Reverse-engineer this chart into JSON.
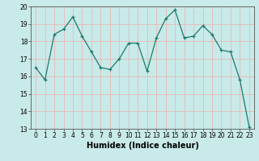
{
  "x": [
    0,
    1,
    2,
    3,
    4,
    5,
    6,
    7,
    8,
    9,
    10,
    11,
    12,
    13,
    14,
    15,
    16,
    17,
    18,
    19,
    20,
    21,
    22,
    23
  ],
  "y": [
    16.5,
    15.8,
    18.4,
    18.7,
    19.4,
    18.3,
    17.4,
    16.5,
    16.4,
    17.0,
    17.9,
    17.9,
    16.3,
    18.2,
    19.3,
    19.8,
    18.2,
    18.3,
    18.9,
    18.4,
    17.5,
    17.4,
    15.8,
    13.1
  ],
  "xlabel": "Humidex (Indice chaleur)",
  "ylim": [
    13,
    20
  ],
  "xlim": [
    -0.5,
    23.5
  ],
  "yticks": [
    13,
    14,
    15,
    16,
    17,
    18,
    19,
    20
  ],
  "xticks": [
    0,
    1,
    2,
    3,
    4,
    5,
    6,
    7,
    8,
    9,
    10,
    11,
    12,
    13,
    14,
    15,
    16,
    17,
    18,
    19,
    20,
    21,
    22,
    23
  ],
  "line_color": "#1a7a6e",
  "marker_color": "#1a7a6e",
  "bg_color": "#c8eae8",
  "grid_color": "#e8b8b8",
  "tick_fontsize": 5.5,
  "xlabel_fontsize": 7
}
